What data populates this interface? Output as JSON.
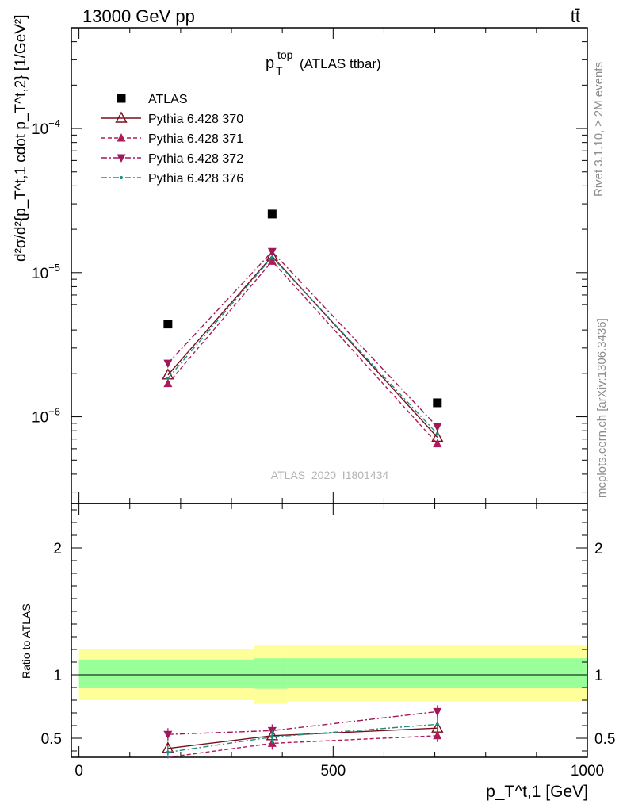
{
  "header": {
    "beam": "13000 GeV pp",
    "process": "tt̄"
  },
  "title": {
    "main": "p",
    "sup": "top",
    "sub": "T",
    "rest": "(ATLAS ttbar)"
  },
  "watermark": "ATLAS_2020_I1801434",
  "side_labels": {
    "rivet": "Rivet 3.1.10, ≥ 2M events",
    "mcplots": "mcplots.cern.ch [arXiv:1306.3436]"
  },
  "axis": {
    "ylabel_top": "d²σ/d²{p_T^t,1 cdot p_T^t,2} [1/GeV²]",
    "ylabel_ratio": "Ratio to ATLAS",
    "xlabel": "p_T^t,1 [GeV]"
  },
  "colors": {
    "data": "#000000",
    "p370": "#7a0d1a",
    "p371": "#b0195a",
    "p372": "#a0185a",
    "p376": "#1a8f80",
    "band_inner": "#99ff99",
    "band_outer": "#ffff99"
  },
  "chart_data": {
    "type": "scatter",
    "x": [
      175,
      380,
      705
    ],
    "xerr_edges": [
      [
        0,
        345
      ],
      [
        345,
        410
      ],
      [
        410,
        1000
      ]
    ],
    "xlim": [
      -15,
      1000
    ],
    "xticks": [
      0,
      500,
      1000
    ],
    "main_panel": {
      "yscale": "log",
      "ylim": [
        2.5e-07,
        0.0005
      ],
      "yticks": [
        {
          "value": 1e-06,
          "base": "10",
          "exp": "−6"
        },
        {
          "value": 1e-05,
          "base": "10",
          "exp": "−5"
        },
        {
          "value": 0.0001,
          "base": "10",
          "exp": "−4"
        }
      ],
      "series": [
        {
          "name": "ATLAS",
          "marker": "square-filled",
          "line": "none",
          "values": [
            4.4e-06,
            2.55e-05,
            1.25e-06
          ]
        },
        {
          "name": "Pythia 6.428 370",
          "marker": "triangle-up-open",
          "line": "solid",
          "values": [
            1.95e-06,
            1.3e-05,
            7.2e-07
          ]
        },
        {
          "name": "Pythia 6.428 371",
          "marker": "triangle-up-filled",
          "line": "dashed",
          "values": [
            1.7e-06,
            1.2e-05,
            6.5e-07
          ]
        },
        {
          "name": "Pythia 6.428 372",
          "marker": "triangle-down-filled",
          "line": "dashdot",
          "values": [
            2.35e-06,
            1.4e-05,
            8.5e-07
          ]
        },
        {
          "name": "Pythia 6.428 376",
          "marker": "dot",
          "line": "dashdot",
          "values": [
            1.85e-06,
            1.28e-05,
            7.6e-07
          ]
        }
      ]
    },
    "ratio_panel": {
      "ylim": [
        0.35,
        2.35
      ],
      "yticks": [
        0.5,
        1,
        2
      ],
      "ytick_labels": [
        "0.5",
        "1",
        "2"
      ],
      "bands": [
        {
          "x0": 0,
          "x1": 345,
          "inner": [
            0.9,
            1.12
          ],
          "outer": [
            0.8,
            1.2
          ]
        },
        {
          "x0": 345,
          "x1": 410,
          "inner": [
            0.89,
            1.13
          ],
          "outer": [
            0.77,
            1.23
          ]
        },
        {
          "x0": 410,
          "x1": 1000,
          "inner": [
            0.9,
            1.13
          ],
          "outer": [
            0.79,
            1.23
          ]
        }
      ],
      "series": [
        {
          "name": "Pythia 6.428 370",
          "values": [
            0.42,
            0.52,
            0.58
          ]
        },
        {
          "name": "Pythia 6.428 371",
          "values": [
            0.3,
            0.46,
            0.52
          ]
        },
        {
          "name": "Pythia 6.428 372",
          "values": [
            0.53,
            0.56,
            0.71
          ]
        },
        {
          "name": "Pythia 6.428 376",
          "values": [
            0.39,
            0.51,
            0.61
          ]
        }
      ]
    }
  }
}
